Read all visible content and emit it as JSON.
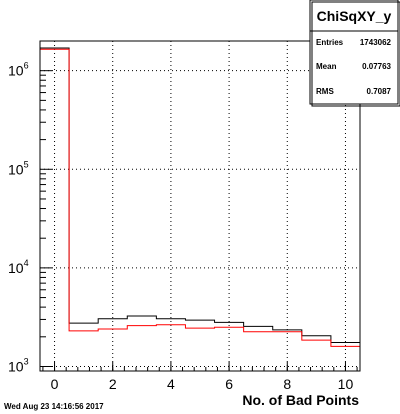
{
  "chart_data": {
    "type": "histogram",
    "title": "",
    "xlabel": "No. of Bad Points",
    "ylabel": "",
    "xlim": [
      -0.5,
      10.5
    ],
    "ylim": [
      900,
      2000000
    ],
    "yscale": "log",
    "grid": true,
    "bin_edges": [
      -0.5,
      0.5,
      1.5,
      2.5,
      3.5,
      4.5,
      5.5,
      6.5,
      7.5,
      8.5,
      9.5,
      10.5
    ],
    "series": [
      {
        "color": "#000000",
        "values": [
          1700000,
          2750,
          3050,
          3250,
          3050,
          2950,
          2800,
          2550,
          2350,
          2050,
          1750
        ]
      },
      {
        "color": "#ff0000",
        "values": [
          1650000,
          2300,
          2400,
          2600,
          2650,
          2450,
          2500,
          2250,
          2250,
          1850,
          1600
        ]
      }
    ],
    "x_ticks": [
      "0",
      "2",
      "4",
      "6",
      "8",
      "10"
    ],
    "y_ticks": [
      {
        "base": "10",
        "exp": "3"
      },
      {
        "base": "10",
        "exp": "4"
      },
      {
        "base": "10",
        "exp": "5"
      },
      {
        "base": "10",
        "exp": "6"
      }
    ],
    "stats_box": {
      "title": "ChiSqXY_y",
      "rows": [
        {
          "label": "Entries",
          "value": "1743062"
        },
        {
          "label": "Mean",
          "value": "0.07763"
        },
        {
          "label": "RMS",
          "value": "0.7087"
        }
      ]
    },
    "timestamp": "Wed Aug 23 14:16:56 2017"
  }
}
